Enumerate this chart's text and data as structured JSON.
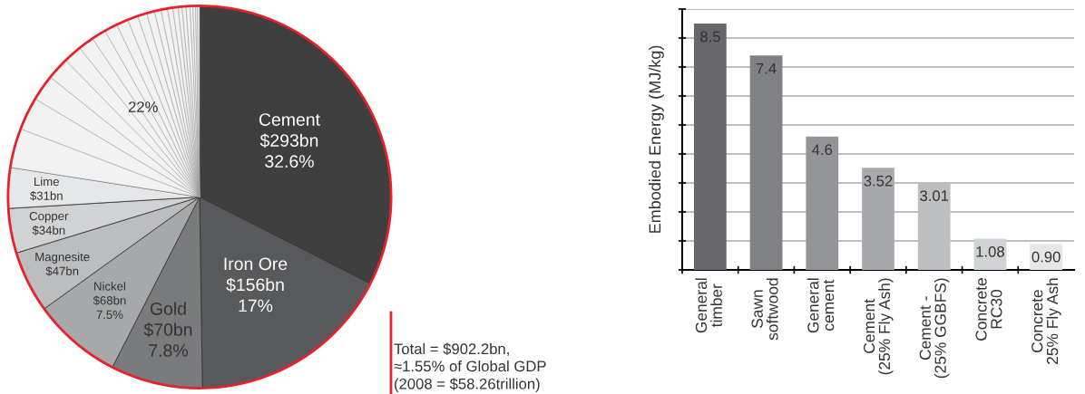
{
  "chart_data": [
    {
      "type": "pie",
      "categories": [
        "Cement",
        "Iron Ore",
        "Gold",
        "Nickel",
        "Magnesite",
        "Copper",
        "Lime",
        null,
        null,
        null,
        null,
        null,
        null,
        null,
        null,
        null,
        null,
        null,
        null,
        null,
        null,
        null,
        null,
        null,
        null,
        null,
        null,
        null,
        null,
        null
      ],
      "values": [
        293,
        156,
        70,
        68,
        47,
        34,
        31,
        30,
        25,
        20,
        17,
        14,
        12,
        11,
        10,
        9,
        8,
        7,
        6,
        5,
        5,
        4,
        4,
        3,
        3,
        3,
        2.2,
        2,
        1.5,
        1.5
      ],
      "colors": [
        "#3f3f3f",
        "#58595b",
        "#7a7b7d",
        "#a7a8aa",
        "#bcbdbf",
        "#d1d2d4",
        "#e6e7e8",
        "#f2f2f2",
        "#f2f2f2",
        "#f2f2f2",
        "#f2f2f2",
        "#f2f2f2",
        "#f2f2f2",
        "#f2f2f2",
        "#f2f2f2",
        "#f2f2f2",
        "#f2f2f2",
        "#f2f2f2",
        "#f2f2f2",
        "#f2f2f2",
        "#f2f2f2",
        "#f2f2f2",
        "#f2f2f2",
        "#f2f2f2",
        "#f2f2f2",
        "#f2f2f2",
        "#f2f2f2",
        "#f2f2f2",
        "#f2f2f2",
        "#f2f2f2"
      ],
      "value_labels": [
        "$293bn",
        "$156bn",
        "$70bn",
        "$68bn",
        "$47bn",
        "$34bn",
        "$31bn",
        null,
        null,
        null,
        null,
        null,
        null,
        null,
        null,
        null,
        null,
        null,
        null,
        null,
        null,
        null,
        null,
        null,
        null,
        null,
        null,
        null,
        null,
        null
      ],
      "annotations": [
        {
          "text": "32.6%",
          "x": "Cement"
        },
        {
          "text": "17%",
          "x": "Iron Ore"
        },
        {
          "text": "7.8%",
          "x": "Gold"
        },
        {
          "text": "7.5%",
          "x": "Nickel"
        },
        "22%",
        "Total = $902.2bn,\n≈1.55% of Global GDP\n(2008 = $58.26trillion)"
      ]
    },
    {
      "type": "bar",
      "categories": [
        "General\ntimber",
        "Sawn\nsoftwood",
        "General\ncement",
        "Cement\n(25% Fly Ash)",
        "Cement -\n(25% GGBFS)",
        "Concrete\nRC30",
        "Concrete\n25% Fly Ash"
      ],
      "values": [
        8.5,
        7.4,
        4.6,
        3.52,
        3.01,
        1.08,
        0.9
      ],
      "value_labels": [
        "8.5",
        "7.4",
        "4.6",
        "3.52",
        "3.01",
        "1.08",
        "0.90"
      ],
      "colors": [
        "#68686c",
        "#808184",
        "#939598",
        "#a7a9ac",
        "#bcbec0",
        "#d1d3d4",
        "#e6e7e8"
      ],
      "ylabel": "Embodied Energy (MJ/kg)",
      "ylim": [
        0,
        9
      ],
      "yticks": [
        {
          "value": 0,
          "label": null
        },
        {
          "value": 1,
          "label": null
        },
        {
          "value": 2,
          "label": null
        },
        {
          "value": 3,
          "label": null
        },
        {
          "value": 4,
          "label": null
        },
        {
          "value": 5,
          "label": null
        },
        {
          "value": 6,
          "label": null
        },
        {
          "value": 7,
          "label": null
        },
        {
          "value": 8,
          "label": null
        },
        {
          "value": 9,
          "label": null
        }
      ],
      "grid": "y"
    }
  ]
}
